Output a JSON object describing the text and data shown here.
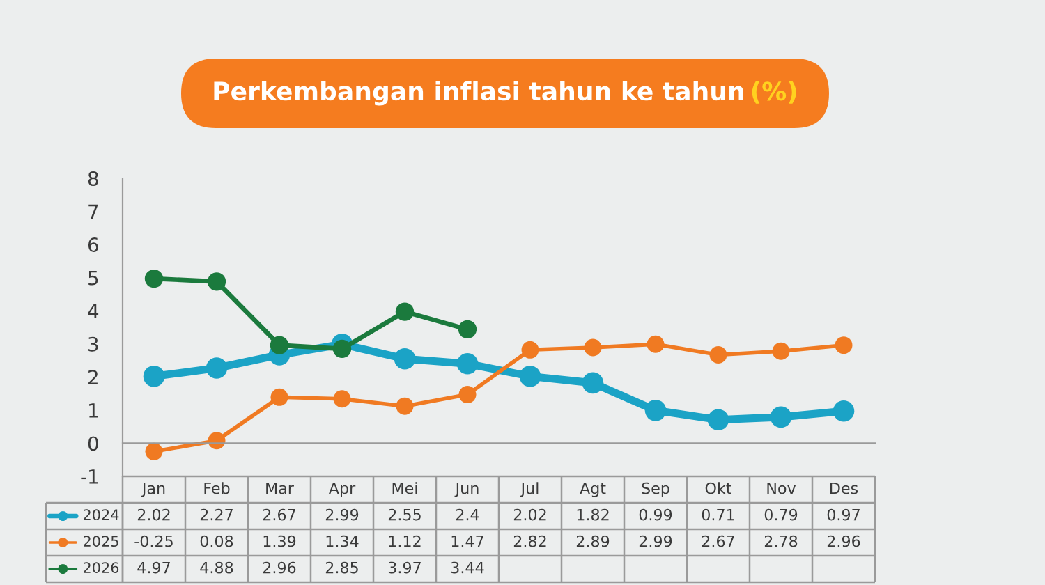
{
  "chart_data": {
    "type": "line",
    "title": "Perkembangan inflasi tahun ke tahun (%)",
    "categories": [
      "Jan",
      "Feb",
      "Mar",
      "Apr",
      "Mei",
      "Jun",
      "Jul",
      "Agt",
      "Sep",
      "Okt",
      "Nov",
      "Des"
    ],
    "series": [
      {
        "name": "2024",
        "color": "#1ba3c6",
        "values": [
          2.02,
          2.27,
          2.67,
          2.99,
          2.55,
          2.4,
          2.02,
          1.82,
          0.99,
          0.71,
          0.79,
          0.97
        ]
      },
      {
        "name": "2025",
        "color": "#f07a22",
        "values": [
          -0.25,
          0.08,
          1.39,
          1.34,
          1.12,
          1.47,
          2.82,
          2.89,
          2.99,
          2.67,
          2.78,
          2.96
        ]
      },
      {
        "name": "2026",
        "color": "#1b7a3d",
        "values": [
          4.97,
          4.88,
          2.96,
          2.85,
          3.97,
          3.44,
          null,
          null,
          null,
          null,
          null,
          null
        ]
      }
    ],
    "ylim": [
      -1,
      8
    ],
    "yticks": [
      -1,
      0,
      1,
      2,
      3,
      4,
      5,
      6,
      7,
      8
    ],
    "data_labels": true,
    "legend": "bottom left",
    "marker": "circle",
    "line_style": "solid"
  }
}
